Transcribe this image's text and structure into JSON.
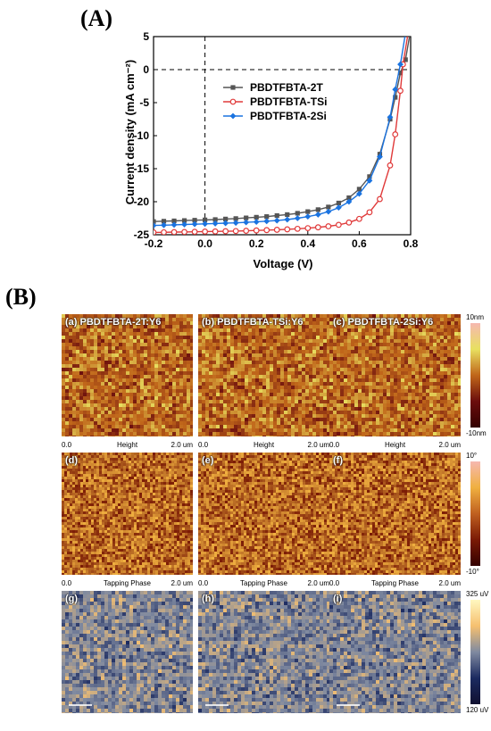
{
  "panel_a_label": "(A)",
  "panel_b_label": "(B)",
  "chart_data": {
    "type": "line",
    "title": "",
    "xlabel": "Voltage (V)",
    "ylabel": "Current density (mA cm⁻²)",
    "xlim": [
      -0.2,
      0.8
    ],
    "ylim": [
      -25,
      5
    ],
    "xticks": [
      "-0.2",
      "0.0",
      "0.2",
      "0.4",
      "0.6",
      "0.8"
    ],
    "yticks": [
      "5",
      "0",
      "-5",
      "-10",
      "-15",
      "-20",
      "-25"
    ],
    "legend_position": "center-right",
    "series": [
      {
        "name": "PBDTFBTA-2T",
        "color": "#555555",
        "marker": "square",
        "x": [
          -0.2,
          -0.16,
          -0.12,
          -0.08,
          -0.04,
          0.0,
          0.04,
          0.08,
          0.12,
          0.16,
          0.2,
          0.24,
          0.28,
          0.32,
          0.36,
          0.4,
          0.44,
          0.48,
          0.52,
          0.56,
          0.6,
          0.64,
          0.68,
          0.72,
          0.74,
          0.76,
          0.78,
          0.8
        ],
        "y": [
          -23.0,
          -22.95,
          -22.9,
          -22.85,
          -22.8,
          -22.75,
          -22.7,
          -22.62,
          -22.55,
          -22.45,
          -22.35,
          -22.25,
          -22.1,
          -21.95,
          -21.75,
          -21.5,
          -21.2,
          -20.8,
          -20.2,
          -19.4,
          -18.1,
          -16.2,
          -12.8,
          -7.5,
          -4.2,
          -0.5,
          1.5,
          6.0
        ]
      },
      {
        "name": "PBDTFBTA-TSi",
        "color": "#e03a3a",
        "marker": "circle",
        "x": [
          -0.2,
          -0.16,
          -0.12,
          -0.08,
          -0.04,
          0.0,
          0.04,
          0.08,
          0.12,
          0.16,
          0.2,
          0.24,
          0.28,
          0.32,
          0.36,
          0.4,
          0.44,
          0.48,
          0.52,
          0.56,
          0.6,
          0.64,
          0.68,
          0.72,
          0.74,
          0.76,
          0.77,
          0.79
        ],
        "y": [
          -24.65,
          -24.63,
          -24.6,
          -24.58,
          -24.55,
          -24.52,
          -24.5,
          -24.47,
          -24.44,
          -24.4,
          -24.35,
          -24.3,
          -24.25,
          -24.18,
          -24.1,
          -24.0,
          -23.88,
          -23.72,
          -23.5,
          -23.15,
          -22.6,
          -21.6,
          -19.6,
          -14.5,
          -9.8,
          -3.2,
          0.8,
          5.5
        ]
      },
      {
        "name": "PBDTFBTA-2Si",
        "color": "#1a73e0",
        "marker": "diamond",
        "x": [
          -0.2,
          -0.16,
          -0.12,
          -0.08,
          -0.04,
          0.0,
          0.04,
          0.08,
          0.12,
          0.16,
          0.2,
          0.24,
          0.28,
          0.32,
          0.36,
          0.4,
          0.44,
          0.48,
          0.52,
          0.56,
          0.6,
          0.64,
          0.68,
          0.72,
          0.74,
          0.76,
          0.78
        ],
        "y": [
          -23.6,
          -23.55,
          -23.5,
          -23.45,
          -23.4,
          -23.35,
          -23.3,
          -23.25,
          -23.2,
          -23.12,
          -23.05,
          -22.95,
          -22.85,
          -22.7,
          -22.5,
          -22.25,
          -21.95,
          -21.5,
          -20.9,
          -20.0,
          -18.8,
          -16.8,
          -13.2,
          -7.2,
          -3.0,
          0.8,
          5.5
        ]
      }
    ]
  },
  "afm_rows": [
    {
      "kind": "height",
      "images": [
        {
          "letter": "(a)",
          "title": "PBDTFBTA-2T:Y6"
        },
        {
          "letter": "(b)",
          "title": "PBDTFBTA-TSi:Y6"
        },
        {
          "letter": "(c)",
          "title": "PBDTFBTA-2Si:Y6"
        }
      ],
      "axis_start": "0.0",
      "axis_label": "Height",
      "axis_end": "2.0 um",
      "colorbar_max": "10nm",
      "colorbar_min": "-10nm"
    },
    {
      "kind": "phase",
      "images": [
        {
          "letter": "(d)",
          "title": ""
        },
        {
          "letter": "(e)",
          "title": ""
        },
        {
          "letter": "(f)",
          "title": ""
        }
      ],
      "axis_start": "0.0",
      "axis_label": "Tapping Phase",
      "axis_end": "2.0 um",
      "colorbar_max": "10°",
      "colorbar_min": "-10°"
    },
    {
      "kind": "kpfm",
      "images": [
        {
          "letter": "(g)",
          "title": ""
        },
        {
          "letter": "(h)",
          "title": ""
        },
        {
          "letter": "(i)",
          "title": ""
        }
      ],
      "colorbar_max": "325 uV",
      "colorbar_min": "120 uV"
    }
  ],
  "colors": {
    "height_dark": "#6b0d0d",
    "height_mid": "#c0661a",
    "height_light": "#e8e060",
    "phase_dark": "#7a1a05",
    "phase_light": "#f0b040",
    "kpfm_dark": "#1b2a60",
    "kpfm_mid": "#808aa0",
    "kpfm_light": "#f6c070"
  }
}
